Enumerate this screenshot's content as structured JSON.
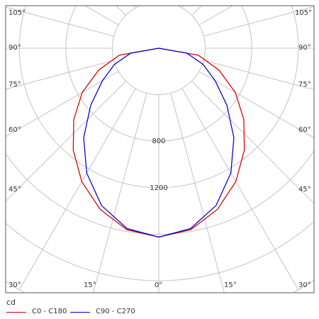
{
  "chart_data": {
    "type": "polar-line",
    "unit_label": "cd",
    "angle_labels": {
      "left_top": "105°",
      "right_top": "105°",
      "left_1": "90°",
      "right_1": "90°",
      "left_2": "75°",
      "right_2": "75°",
      "left_3": "60°",
      "right_3": "60°",
      "left_4": "45°",
      "right_4": "45°",
      "bottom_left": "30°",
      "bottom_left_mid": "15°",
      "bottom_center": "0°",
      "bottom_right_mid": "15°",
      "bottom_right": "30°"
    },
    "radial_labels": [
      "800",
      "1200"
    ],
    "radial_values": [
      800,
      1200
    ],
    "series": [
      {
        "name": "C0 - C180",
        "color": "#d40000",
        "theta": [
          0,
          10,
          20,
          30,
          40,
          50,
          60,
          70,
          80,
          90
        ],
        "values": [
          1625,
          1585,
          1475,
          1325,
          1145,
          955,
          760,
          550,
          345,
          0
        ]
      },
      {
        "name": "C90 - C270",
        "color": "#0000cc",
        "theta": [
          0,
          10,
          20,
          30,
          40,
          50,
          60,
          70,
          80,
          90
        ],
        "values": [
          1625,
          1575,
          1440,
          1240,
          1005,
          765,
          560,
          405,
          245,
          0
        ]
      }
    ]
  }
}
